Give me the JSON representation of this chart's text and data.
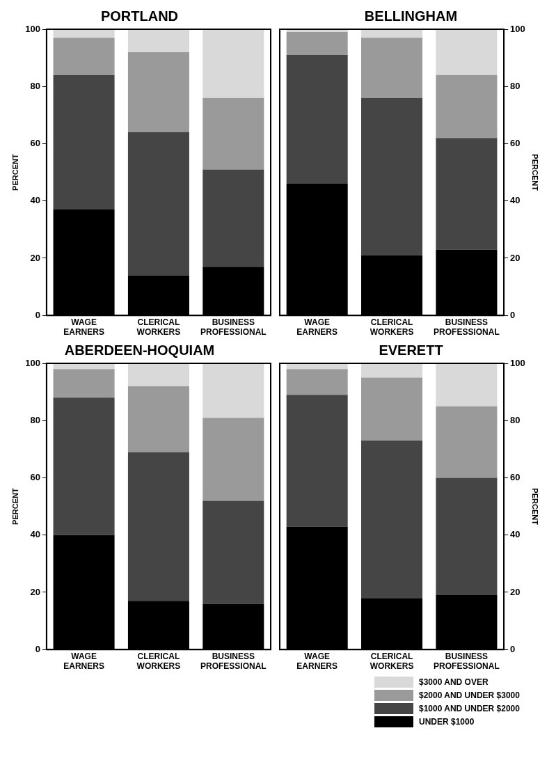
{
  "chart_data": [
    {
      "type": "bar",
      "title": "PORTLAND",
      "ylabel": "PERCENT",
      "categories": [
        "WAGE EARNERS",
        "CLERICAL WORKERS",
        "BUSINESS PROFESSIONAL"
      ],
      "stacked": true,
      "ylim": [
        0,
        100
      ],
      "yticks": [
        0,
        20,
        40,
        60,
        80,
        100
      ],
      "series": [
        {
          "color": "#000000",
          "values": [
            37,
            14,
            17
          ]
        },
        {
          "color": "#454545",
          "values": [
            47,
            50,
            34
          ]
        },
        {
          "color": "#9a9a9a",
          "values": [
            13,
            28,
            25
          ]
        },
        {
          "color": "#d9d9d9",
          "values": [
            3,
            8,
            24
          ]
        }
      ]
    },
    {
      "type": "bar",
      "title": "BELLINGHAM",
      "ylabel": "PERCENT",
      "categories": [
        "WAGE EARNERS",
        "CLERICAL WORKERS",
        "BUSINESS PROFESSIONAL"
      ],
      "stacked": true,
      "ylim": [
        0,
        100
      ],
      "yticks": [
        0,
        20,
        40,
        60,
        80,
        100
      ],
      "series": [
        {
          "color": "#000000",
          "values": [
            46,
            21,
            23
          ]
        },
        {
          "color": "#454545",
          "values": [
            45,
            55,
            39
          ]
        },
        {
          "color": "#9a9a9a",
          "values": [
            8,
            21,
            22
          ]
        },
        {
          "color": "#d9d9d9",
          "values": [
            1,
            3,
            16
          ]
        }
      ]
    },
    {
      "type": "bar",
      "title": "ABERDEEN-HOQUIAM",
      "ylabel": "PERCENT",
      "categories": [
        "WAGE EARNERS",
        "CLERICAL WORKERS",
        "BUSINESS PROFESSIONAL"
      ],
      "stacked": true,
      "ylim": [
        0,
        100
      ],
      "yticks": [
        0,
        20,
        40,
        60,
        80,
        100
      ],
      "series": [
        {
          "color": "#000000",
          "values": [
            40,
            17,
            16
          ]
        },
        {
          "color": "#454545",
          "values": [
            48,
            52,
            36
          ]
        },
        {
          "color": "#9a9a9a",
          "values": [
            10,
            23,
            29
          ]
        },
        {
          "color": "#d9d9d9",
          "values": [
            2,
            8,
            19
          ]
        }
      ]
    },
    {
      "type": "bar",
      "title": "EVERETT",
      "ylabel": "PERCENT",
      "categories": [
        "WAGE EARNERS",
        "CLERICAL WORKERS",
        "BUSINESS PROFESSIONAL"
      ],
      "stacked": true,
      "ylim": [
        0,
        100
      ],
      "yticks": [
        0,
        20,
        40,
        60,
        80,
        100
      ],
      "legend": "bottom right",
      "series": [
        {
          "name": "UNDER $1000",
          "color": "#000000",
          "values": [
            43,
            18,
            19
          ]
        },
        {
          "name": "$1000 AND UNDER $2000",
          "color": "#454545",
          "values": [
            46,
            55,
            41
          ]
        },
        {
          "name": "$2000 AND UNDER $3000",
          "color": "#9a9a9a",
          "values": [
            9,
            22,
            25
          ]
        },
        {
          "name": "$3000 AND OVER",
          "color": "#d9d9d9",
          "values": [
            2,
            5,
            15
          ]
        }
      ]
    }
  ]
}
